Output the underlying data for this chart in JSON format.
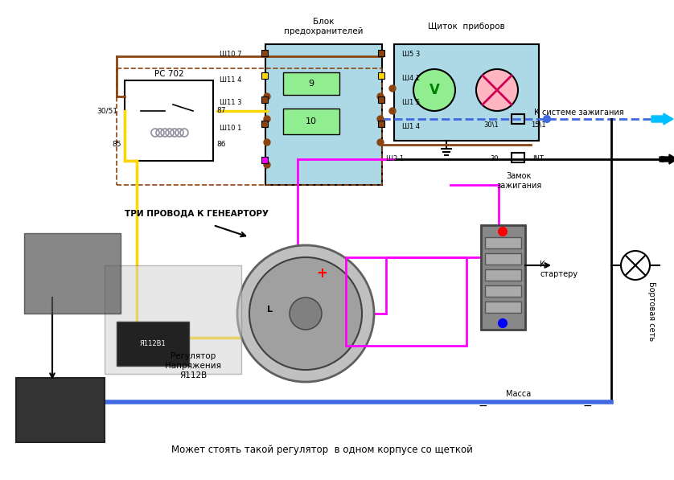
{
  "title": "",
  "bg_color": "#ffffff",
  "text_bloc_predohranitelei": "Блок\nпредохранителей",
  "text_schitok_priborov": "Щиток  приборов",
  "text_rc702": "РС 702",
  "text_tri_provoda": "ТРИ ПРОВОДА К ГЕНЕАРТОРУ",
  "text_regulator": "Регулятор\nНапряжения\nЯ112В",
  "text_zamok": "Замок\nзажигания",
  "text_k_sisteme": "К системе зажигания",
  "text_k_starteru": "К\nстартеру",
  "text_bortovaya": "Бортовая сеть",
  "text_massa": "Масса",
  "text_mozhet": "Может стоять такой регулятор  в одном корпусе со щеткой",
  "text_30_51": "30/51",
  "text_85": "85",
  "text_87": "87",
  "text_86": "86",
  "text_sh10_7": "Ш10 7",
  "text_sh11_4": "Ш11 4",
  "text_sh11_3": "Ш11 3",
  "text_sh10_1": "Ш10 1",
  "text_sh5_3": "Ш5 3",
  "text_sh4_1": "Ш4 1",
  "text_sh1_5": "Ш1 5",
  "text_sh1_4": "Ш1 4",
  "text_sh2_1": "Ш2 1",
  "text_9": "9",
  "text_10": "10",
  "text_30_1": "30\\1",
  "text_15_1": "15\\1",
  "text_30": "30",
  "text_INT": "INT",
  "text_L": "L",
  "colors": {
    "yellow": "#FFD700",
    "brown": "#8B4513",
    "magenta": "#FF00FF",
    "blue_dashed": "#4169E1",
    "light_blue_fill": "#ADD8E6",
    "blue_arrow": "#00BFFF",
    "black": "#000000",
    "green": "#00CC00",
    "pink": "#FFB6C1",
    "gray_box": "#A0A0A0",
    "red": "#FF0000",
    "orange_box": "#FFA500"
  }
}
